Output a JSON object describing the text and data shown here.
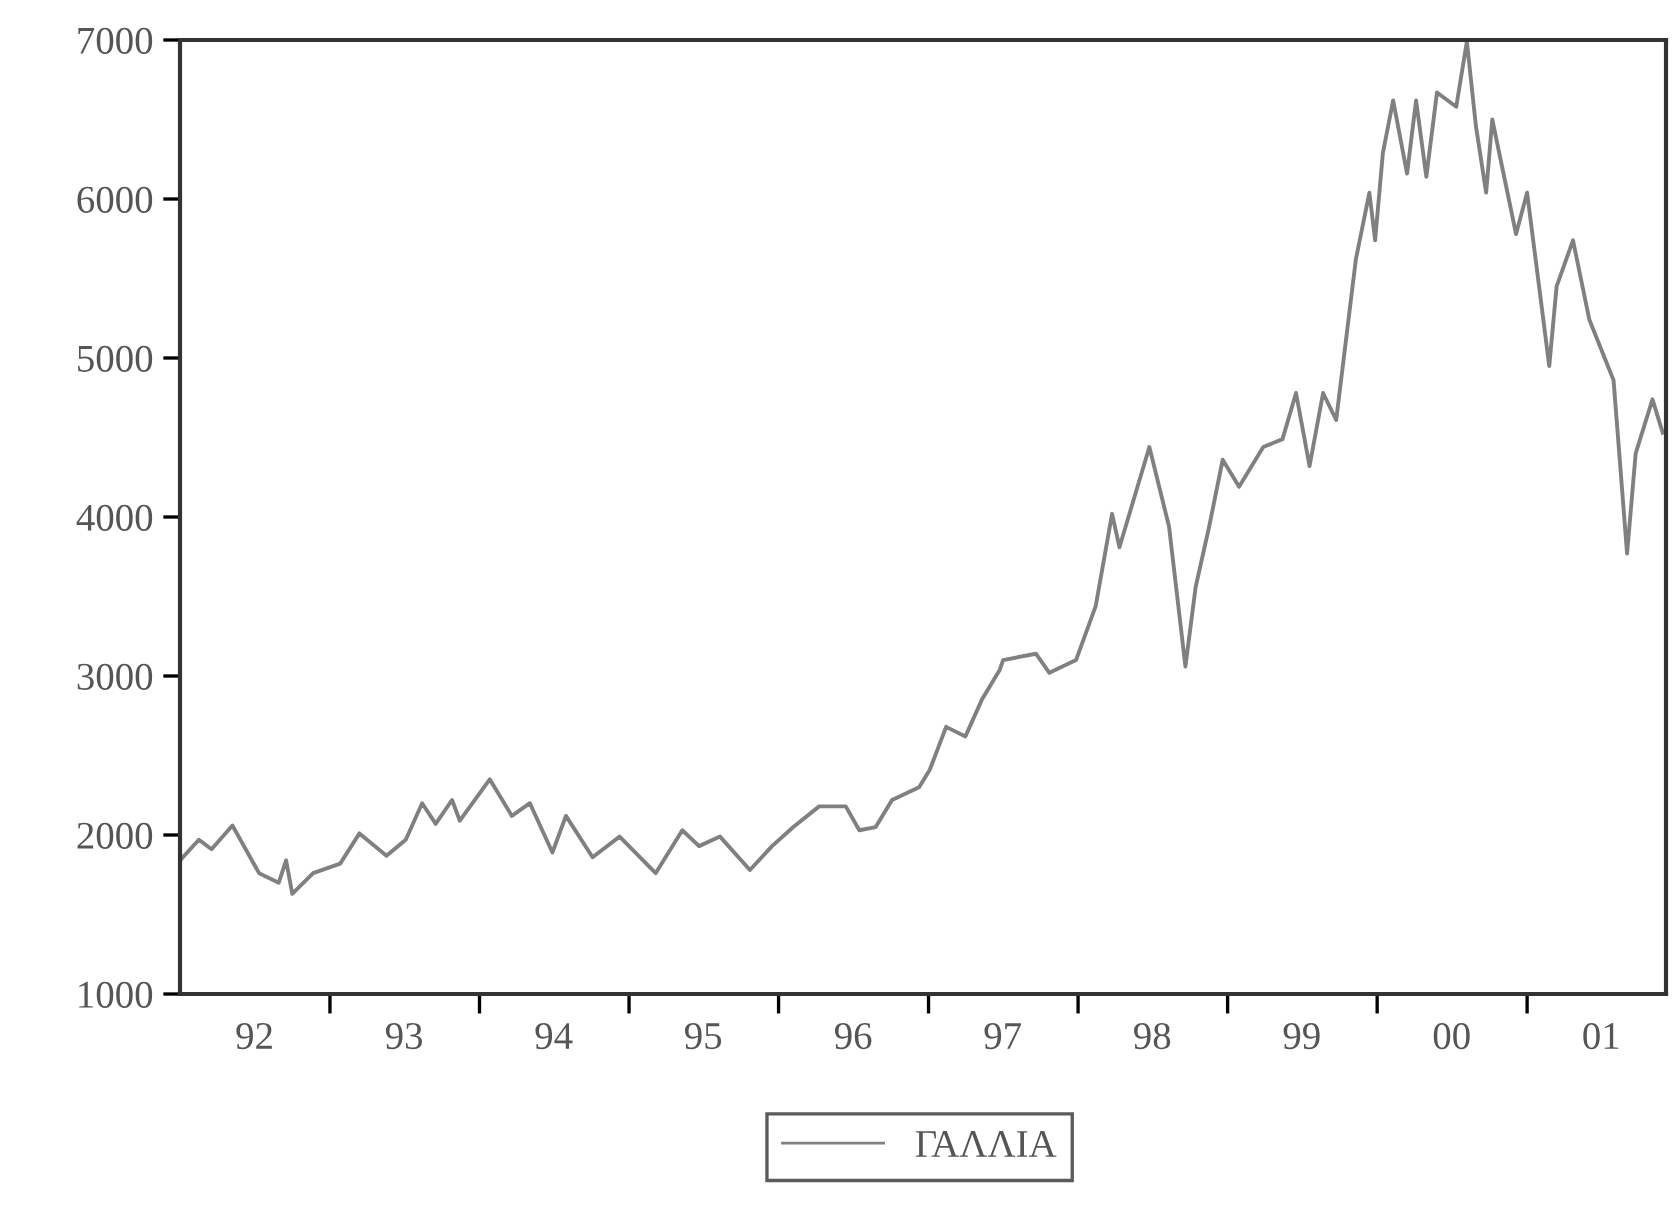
{
  "chart_data": {
    "type": "line",
    "x": [
      "1992-01-01",
      "1992-02-16",
      "1992-03-18",
      "1992-05-08",
      "1992-07-12",
      "1992-08-29",
      "1992-09-16",
      "1992-10-01",
      "1992-11-21",
      "1993-01-26",
      "1993-03-14",
      "1993-05-19",
      "1993-07-05",
      "1993-08-14",
      "1993-09-16",
      "1993-10-26",
      "1993-11-14",
      "1994-01-26",
      "1994-03-21",
      "1994-05-04",
      "1994-06-28",
      "1994-07-31",
      "1994-10-04",
      "1994-12-09",
      "1995-03-07",
      "1995-05-11",
      "1995-06-21",
      "1995-08-11",
      "1995-10-23",
      "1995-12-16",
      "1996-02-06",
      "1996-04-09",
      "1996-06-13",
      "1996-07-16",
      "1996-08-25",
      "1996-10-04",
      "1996-12-09",
      "1997-01-04",
      "1997-02-13",
      "1997-04-01",
      "1997-05-11",
      "1997-06-24",
      "1997-07-02",
      "1997-09-20",
      "1997-10-23",
      "1997-12-27",
      "1998-02-13",
      "1998-03-25",
      "1998-04-12",
      "1998-06-24",
      "1998-08-11",
      "1998-09-20",
      "1998-10-15",
      "1998-11-17",
      "1998-12-20",
      "1999-01-29",
      "1999-03-29",
      "1999-05-15",
      "1999-06-17",
      "1999-07-20",
      "1999-08-22",
      "1999-09-23",
      "1999-11-10",
      "1999-12-13",
      "1999-12-27",
      "2000-01-15",
      "2000-02-09",
      "2000-03-14",
      "2000-04-05",
      "2000-04-30",
      "2000-05-26",
      "2000-07-12",
      "2000-08-07",
      "2000-08-29",
      "2000-09-23",
      "2000-10-08",
      "2000-12-05",
      "2001-01-01",
      "2001-02-24",
      "2001-03-14",
      "2001-04-23",
      "2001-06-02",
      "2001-07-31",
      "2001-09-02",
      "2001-09-23",
      "2001-11-03",
      "2001-11-28"
    ],
    "series": [
      {
        "name": "ΓΑΛΛΙΑ",
        "color": "#808080",
        "values": [
          1840,
          1970,
          1910,
          2060,
          1760,
          1700,
          1840,
          1630,
          1760,
          1820,
          2010,
          1870,
          1970,
          2200,
          2070,
          2220,
          2090,
          2350,
          2120,
          2200,
          1890,
          2120,
          1860,
          1990,
          1760,
          2030,
          1930,
          1990,
          1780,
          1930,
          2050,
          2180,
          2180,
          2030,
          2050,
          2220,
          2300,
          2410,
          2680,
          2620,
          2850,
          3040,
          3100,
          3140,
          3020,
          3100,
          3440,
          4020,
          3810,
          4440,
          3940,
          3060,
          3560,
          3940,
          4360,
          4190,
          4440,
          4490,
          4780,
          4320,
          4780,
          4610,
          5620,
          6040,
          5740,
          6290,
          6620,
          6160,
          6620,
          6140,
          6670,
          6580,
          6990,
          6460,
          6040,
          6500,
          5780,
          6040,
          4950,
          5450,
          5740,
          5240,
          4860,
          3770,
          4400,
          4740,
          4530
        ]
      }
    ],
    "xlim": [
      "1992-01-01",
      "2001-12-06"
    ],
    "xticks": [
      {
        "value": "1992-07-01",
        "label": "92"
      },
      {
        "value": "1993-07-01",
        "label": "93"
      },
      {
        "value": "1994-07-01",
        "label": "94"
      },
      {
        "value": "1995-07-01",
        "label": "95"
      },
      {
        "value": "1996-07-01",
        "label": "96"
      },
      {
        "value": "1997-07-01",
        "label": "97"
      },
      {
        "value": "1998-07-01",
        "label": "98"
      },
      {
        "value": "1999-07-01",
        "label": "99"
      },
      {
        "value": "2000-07-01",
        "label": "00"
      },
      {
        "value": "2001-07-01",
        "label": "01"
      },
      {
        "value": "1993-01-01",
        "label": null
      },
      {
        "value": "1994-01-01",
        "label": null
      },
      {
        "value": "1995-01-01",
        "label": null
      },
      {
        "value": "1996-01-01",
        "label": null
      },
      {
        "value": "1997-01-01",
        "label": null
      },
      {
        "value": "1998-01-01",
        "label": null
      },
      {
        "value": "1999-01-01",
        "label": null
      },
      {
        "value": "2000-01-01",
        "label": null
      },
      {
        "value": "2001-01-01",
        "label": null
      }
    ],
    "ylim": [
      1000,
      7000
    ],
    "yticks": [
      1000,
      2000,
      3000,
      4000,
      5000,
      6000,
      7000
    ],
    "legend": "bottom",
    "grid": false,
    "line_style": "solid",
    "marker": "none"
  }
}
